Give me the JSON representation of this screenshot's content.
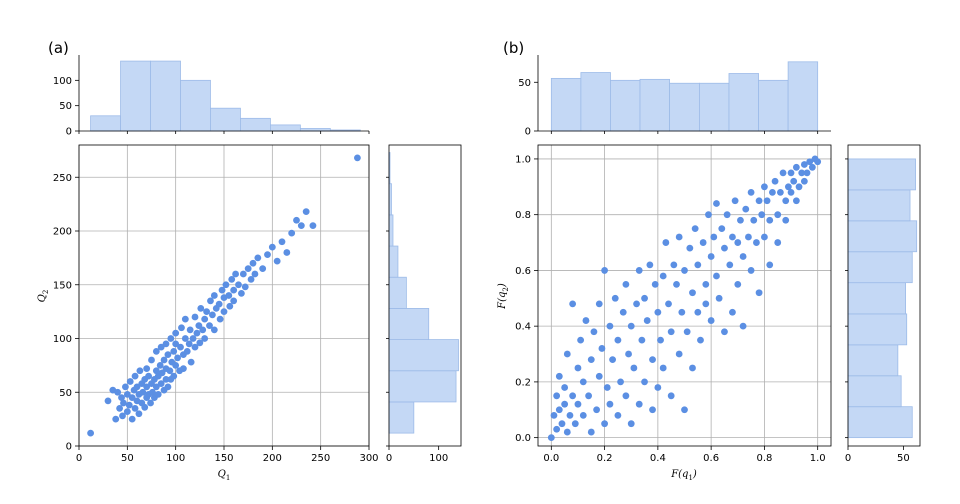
{
  "figure": {
    "panels": [
      {
        "label": "(a)"
      },
      {
        "label": "(b)"
      }
    ]
  },
  "chart_data": [
    {
      "panel": "(a)",
      "type": "scatter",
      "xlabel_main": "Q",
      "xlabel_sub": "1",
      "ylabel_main": "Q",
      "ylabel_sub": "2",
      "xlim": [
        0,
        300
      ],
      "ylim": [
        0,
        280
      ],
      "xticks": [
        0,
        50,
        100,
        150,
        200,
        250,
        300
      ],
      "yticks": [
        0,
        50,
        100,
        150,
        200,
        250
      ],
      "grid": true,
      "color": "#5b8fe3",
      "points": [
        [
          12,
          12
        ],
        [
          30,
          42
        ],
        [
          35,
          52
        ],
        [
          38,
          25
        ],
        [
          40,
          50
        ],
        [
          42,
          35
        ],
        [
          44,
          45
        ],
        [
          45,
          28
        ],
        [
          46,
          40
        ],
        [
          48,
          55
        ],
        [
          50,
          32
        ],
        [
          50,
          48
        ],
        [
          52,
          38
        ],
        [
          53,
          60
        ],
        [
          55,
          45
        ],
        [
          55,
          25
        ],
        [
          57,
          52
        ],
        [
          58,
          35
        ],
        [
          58,
          65
        ],
        [
          60,
          42
        ],
        [
          60,
          55
        ],
        [
          62,
          30
        ],
        [
          62,
          48
        ],
        [
          63,
          70
        ],
        [
          65,
          40
        ],
        [
          65,
          58
        ],
        [
          66,
          50
        ],
        [
          68,
          36
        ],
        [
          68,
          62
        ],
        [
          70,
          45
        ],
        [
          70,
          72
        ],
        [
          70,
          55
        ],
        [
          72,
          48
        ],
        [
          72,
          65
        ],
        [
          74,
          40
        ],
        [
          75,
          58
        ],
        [
          75,
          80
        ],
        [
          76,
          50
        ],
        [
          78,
          62
        ],
        [
          78,
          45
        ],
        [
          80,
          70
        ],
        [
          80,
          55
        ],
        [
          80,
          88
        ],
        [
          82,
          48
        ],
        [
          82,
          65
        ],
        [
          84,
          75
        ],
        [
          85,
          58
        ],
        [
          85,
          92
        ],
        [
          86,
          68
        ],
        [
          88,
          52
        ],
        [
          88,
          80
        ],
        [
          90,
          62
        ],
        [
          90,
          95
        ],
        [
          90,
          72
        ],
        [
          92,
          55
        ],
        [
          92,
          85
        ],
        [
          94,
          70
        ],
        [
          95,
          100
        ],
        [
          95,
          62
        ],
        [
          96,
          78
        ],
        [
          98,
          88
        ],
        [
          98,
          65
        ],
        [
          100,
          75
        ],
        [
          100,
          95
        ],
        [
          100,
          105
        ],
        [
          102,
          82
        ],
        [
          104,
          70
        ],
        [
          105,
          92
        ],
        [
          106,
          110
        ],
        [
          108,
          85
        ],
        [
          108,
          72
        ],
        [
          110,
          100
        ],
        [
          110,
          118
        ],
        [
          112,
          88
        ],
        [
          114,
          95
        ],
        [
          115,
          108
        ],
        [
          116,
          78
        ],
        [
          118,
          100
        ],
        [
          120,
          92
        ],
        [
          120,
          120
        ],
        [
          122,
          105
        ],
        [
          124,
          112
        ],
        [
          125,
          96
        ],
        [
          126,
          128
        ],
        [
          128,
          108
        ],
        [
          130,
          118
        ],
        [
          130,
          100
        ],
        [
          132,
          125
        ],
        [
          135,
          112
        ],
        [
          136,
          135
        ],
        [
          138,
          122
        ],
        [
          140,
          108
        ],
        [
          140,
          140
        ],
        [
          142,
          128
        ],
        [
          145,
          132
        ],
        [
          146,
          118
        ],
        [
          148,
          145
        ],
        [
          150,
          138
        ],
        [
          150,
          125
        ],
        [
          152,
          150
        ],
        [
          155,
          140
        ],
        [
          156,
          130
        ],
        [
          158,
          155
        ],
        [
          160,
          145
        ],
        [
          160,
          135
        ],
        [
          162,
          160
        ],
        [
          165,
          150
        ],
        [
          168,
          142
        ],
        [
          170,
          160
        ],
        [
          172,
          148
        ],
        [
          175,
          165
        ],
        [
          178,
          155
        ],
        [
          180,
          170
        ],
        [
          182,
          160
        ],
        [
          185,
          175
        ],
        [
          190,
          165
        ],
        [
          195,
          178
        ],
        [
          200,
          185
        ],
        [
          205,
          172
        ],
        [
          210,
          190
        ],
        [
          215,
          180
        ],
        [
          220,
          198
        ],
        [
          225,
          210
        ],
        [
          230,
          205
        ],
        [
          235,
          218
        ],
        [
          242,
          205
        ],
        [
          288,
          268
        ]
      ]
    },
    {
      "panel": "(a)",
      "type": "bar",
      "orientation": "vertical",
      "subtype": "histogram",
      "bin_edges": [
        12,
        43,
        74,
        105,
        136,
        167,
        198,
        229,
        260,
        291
      ],
      "values": [
        30,
        138,
        138,
        100,
        45,
        25,
        12,
        5,
        2
      ],
      "ylim": [
        0,
        150
      ],
      "yticks": [
        0,
        50,
        100
      ],
      "color": "#c4d8f5"
    },
    {
      "panel": "(a)",
      "type": "bar",
      "orientation": "horizontal",
      "subtype": "histogram",
      "bin_edges": [
        12,
        41,
        70,
        99,
        128,
        157,
        186,
        215,
        244,
        273
      ],
      "values": [
        50,
        135,
        140,
        80,
        35,
        18,
        8,
        5,
        2
      ],
      "xlim": [
        0,
        145
      ],
      "xticks": [
        0,
        100
      ],
      "color": "#c4d8f5"
    },
    {
      "panel": "(b)",
      "type": "scatter",
      "xlabel_main": "F(q",
      "xlabel_sub": "1",
      "xlabel_end": ")",
      "ylabel_main": "F(q",
      "ylabel_sub": "2",
      "ylabel_end": ")",
      "xlim": [
        -0.05,
        1.05
      ],
      "ylim": [
        -0.03,
        1.05
      ],
      "xticks": [
        0.0,
        0.2,
        0.4,
        0.6,
        0.8,
        1.0
      ],
      "yticks": [
        0.0,
        0.2,
        0.4,
        0.6,
        0.8,
        1.0
      ],
      "grid": true,
      "color": "#5b8fe3",
      "points": [
        [
          0.0,
          0.0
        ],
        [
          0.01,
          0.08
        ],
        [
          0.02,
          0.15
        ],
        [
          0.02,
          0.03
        ],
        [
          0.03,
          0.22
        ],
        [
          0.03,
          0.1
        ],
        [
          0.04,
          0.05
        ],
        [
          0.05,
          0.18
        ],
        [
          0.05,
          0.12
        ],
        [
          0.06,
          0.02
        ],
        [
          0.06,
          0.3
        ],
        [
          0.07,
          0.08
        ],
        [
          0.08,
          0.15
        ],
        [
          0.08,
          0.48
        ],
        [
          0.09,
          0.05
        ],
        [
          0.1,
          0.25
        ],
        [
          0.1,
          0.12
        ],
        [
          0.11,
          0.35
        ],
        [
          0.12,
          0.08
        ],
        [
          0.12,
          0.2
        ],
        [
          0.13,
          0.42
        ],
        [
          0.14,
          0.15
        ],
        [
          0.15,
          0.02
        ],
        [
          0.15,
          0.28
        ],
        [
          0.16,
          0.38
        ],
        [
          0.17,
          0.1
        ],
        [
          0.18,
          0.22
        ],
        [
          0.18,
          0.48
        ],
        [
          0.19,
          0.32
        ],
        [
          0.2,
          0.05
        ],
        [
          0.2,
          0.6
        ],
        [
          0.21,
          0.18
        ],
        [
          0.22,
          0.4
        ],
        [
          0.22,
          0.12
        ],
        [
          0.23,
          0.28
        ],
        [
          0.24,
          0.5
        ],
        [
          0.25,
          0.08
        ],
        [
          0.25,
          0.35
        ],
        [
          0.26,
          0.2
        ],
        [
          0.27,
          0.45
        ],
        [
          0.28,
          0.55
        ],
        [
          0.28,
          0.15
        ],
        [
          0.29,
          0.3
        ],
        [
          0.3,
          0.4
        ],
        [
          0.3,
          0.05
        ],
        [
          0.31,
          0.25
        ],
        [
          0.32,
          0.48
        ],
        [
          0.33,
          0.12
        ],
        [
          0.33,
          0.6
        ],
        [
          0.34,
          0.35
        ],
        [
          0.35,
          0.2
        ],
        [
          0.35,
          0.5
        ],
        [
          0.36,
          0.42
        ],
        [
          0.37,
          0.62
        ],
        [
          0.38,
          0.28
        ],
        [
          0.38,
          0.1
        ],
        [
          0.39,
          0.55
        ],
        [
          0.4,
          0.45
        ],
        [
          0.4,
          0.18
        ],
        [
          0.41,
          0.35
        ],
        [
          0.42,
          0.58
        ],
        [
          0.42,
          0.25
        ],
        [
          0.43,
          0.7
        ],
        [
          0.44,
          0.48
        ],
        [
          0.45,
          0.15
        ],
        [
          0.45,
          0.38
        ],
        [
          0.46,
          0.62
        ],
        [
          0.47,
          0.55
        ],
        [
          0.48,
          0.3
        ],
        [
          0.48,
          0.72
        ],
        [
          0.49,
          0.45
        ],
        [
          0.5,
          0.6
        ],
        [
          0.5,
          0.1
        ],
        [
          0.51,
          0.38
        ],
        [
          0.52,
          0.68
        ],
        [
          0.53,
          0.52
        ],
        [
          0.53,
          0.25
        ],
        [
          0.54,
          0.75
        ],
        [
          0.55,
          0.45
        ],
        [
          0.55,
          0.62
        ],
        [
          0.56,
          0.35
        ],
        [
          0.57,
          0.7
        ],
        [
          0.58,
          0.55
        ],
        [
          0.58,
          0.48
        ],
        [
          0.59,
          0.8
        ],
        [
          0.6,
          0.65
        ],
        [
          0.6,
          0.42
        ],
        [
          0.61,
          0.72
        ],
        [
          0.62,
          0.58
        ],
        [
          0.62,
          0.84
        ],
        [
          0.63,
          0.5
        ],
        [
          0.64,
          0.75
        ],
        [
          0.65,
          0.68
        ],
        [
          0.65,
          0.38
        ],
        [
          0.66,
          0.8
        ],
        [
          0.67,
          0.62
        ],
        [
          0.68,
          0.72
        ],
        [
          0.68,
          0.45
        ],
        [
          0.69,
          0.85
        ],
        [
          0.7,
          0.7
        ],
        [
          0.7,
          0.55
        ],
        [
          0.71,
          0.78
        ],
        [
          0.72,
          0.65
        ],
        [
          0.72,
          0.4
        ],
        [
          0.73,
          0.82
        ],
        [
          0.74,
          0.72
        ],
        [
          0.75,
          0.88
        ],
        [
          0.75,
          0.6
        ],
        [
          0.76,
          0.78
        ],
        [
          0.77,
          0.7
        ],
        [
          0.78,
          0.85
        ],
        [
          0.78,
          0.52
        ],
        [
          0.79,
          0.8
        ],
        [
          0.8,
          0.9
        ],
        [
          0.8,
          0.72
        ],
        [
          0.81,
          0.85
        ],
        [
          0.82,
          0.78
        ],
        [
          0.82,
          0.62
        ],
        [
          0.83,
          0.88
        ],
        [
          0.84,
          0.92
        ],
        [
          0.85,
          0.8
        ],
        [
          0.85,
          0.7
        ],
        [
          0.86,
          0.88
        ],
        [
          0.87,
          0.95
        ],
        [
          0.88,
          0.85
        ],
        [
          0.88,
          0.78
        ],
        [
          0.89,
          0.9
        ],
        [
          0.9,
          0.95
        ],
        [
          0.9,
          0.88
        ],
        [
          0.91,
          0.92
        ],
        [
          0.92,
          0.85
        ],
        [
          0.92,
          0.97
        ],
        [
          0.93,
          0.9
        ],
        [
          0.94,
          0.95
        ],
        [
          0.95,
          0.92
        ],
        [
          0.95,
          0.98
        ],
        [
          0.96,
          0.95
        ],
        [
          0.97,
          0.99
        ],
        [
          0.98,
          0.97
        ],
        [
          0.99,
          1.0
        ],
        [
          1.0,
          0.99
        ]
      ]
    },
    {
      "panel": "(b)",
      "type": "bar",
      "orientation": "vertical",
      "subtype": "histogram",
      "bin_edges": [
        0.0,
        0.111,
        0.222,
        0.333,
        0.444,
        0.556,
        0.667,
        0.778,
        0.889,
        1.0
      ],
      "values": [
        54,
        60,
        52,
        53,
        49,
        49,
        59,
        52,
        71
      ],
      "ylim": [
        0,
        78
      ],
      "yticks": [
        0,
        50
      ],
      "color": "#c4d8f5"
    },
    {
      "panel": "(b)",
      "type": "bar",
      "orientation": "horizontal",
      "subtype": "histogram",
      "bin_edges": [
        0.0,
        0.111,
        0.222,
        0.333,
        0.444,
        0.556,
        0.667,
        0.778,
        0.889,
        1.0
      ],
      "values": [
        58,
        48,
        45,
        53,
        52,
        58,
        62,
        56,
        61
      ],
      "xlim": [
        0,
        65
      ],
      "xticks": [
        0,
        50
      ],
      "color": "#c4d8f5"
    }
  ]
}
